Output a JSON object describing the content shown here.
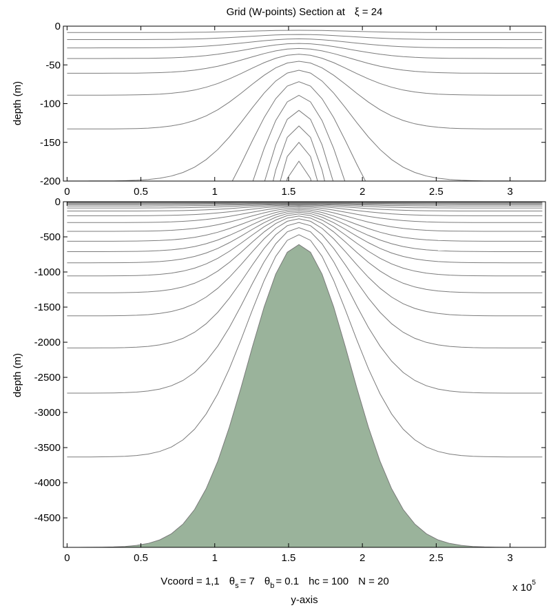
{
  "chart_data": [
    {
      "type": "line",
      "panel": "top",
      "title": "Grid (W-points) Section at",
      "title_symbol": "ξ = 24",
      "ylabel": "depth  (m)",
      "xlim": [
        -0.025,
        3.24
      ],
      "ylim": [
        -200,
        0
      ],
      "xticks": [
        "0",
        "0.5",
        "1",
        "1.5",
        "2",
        "2.5",
        "3"
      ],
      "yticks": [
        "0",
        "-50",
        "-100",
        "-150",
        "-200"
      ],
      "line_color": "#7a7a7a",
      "grid": false
    },
    {
      "type": "area",
      "panel": "bottom",
      "ylabel": "depth  (m)",
      "xlabel": "y-axis",
      "x_multiplier": "x 10",
      "x_multiplier_exp": "5",
      "xlim": [
        -0.025,
        3.24
      ],
      "ylim": [
        -4920,
        0
      ],
      "xticks": [
        "0",
        "0.5",
        "1",
        "1.5",
        "2",
        "2.5",
        "3"
      ],
      "yticks": [
        "0",
        "-500",
        "-1000",
        "-1500",
        "-2000",
        "-2500",
        "-3000",
        "-3500",
        "-4000",
        "-4500"
      ],
      "fill_color": "#9ab39b",
      "line_color": "#7a7a7a",
      "grid": false,
      "annotation": {
        "vcoord": "Vcoord = 1,1",
        "theta_s": {
          "sym": "θ",
          "sub": "s",
          "val": "= 7"
        },
        "theta_b": {
          "sym": "θ",
          "sub": "b",
          "val": "= 0.1"
        },
        "hc": "hc  = 100",
        "n": "N = 20"
      }
    }
  ],
  "grid_params": {
    "theta_s": 7,
    "theta_b": 0.1,
    "hc": 100,
    "N": 20
  },
  "bathymetry": {
    "x": [
      0,
      0.0785,
      0.157,
      0.2355,
      0.314,
      0.3925,
      0.471,
      0.5495,
      0.628,
      0.7065,
      0.785,
      0.8635,
      0.942,
      1.0205,
      1.099,
      1.1775,
      1.256,
      1.3345,
      1.413,
      1.4915,
      1.57,
      1.6485,
      1.727,
      1.8055,
      1.884,
      1.9625,
      2.041,
      2.1195,
      2.198,
      2.2765,
      2.355,
      2.4335,
      2.512,
      2.5905,
      2.669,
      2.7475,
      2.826,
      2.9045,
      2.983,
      3.0615,
      3.14,
      3.2185
    ],
    "h": [
      4920,
      4920,
      4919,
      4917,
      4914,
      4907,
      4892,
      4864,
      4813,
      4727,
      4589,
      4381,
      4086,
      3695,
      3209,
      2651,
      2062,
      1499,
      1031,
      719,
      610,
      719,
      1031,
      1499,
      2062,
      2651,
      3209,
      3695,
      4086,
      4381,
      4589,
      4727,
      4813,
      4864,
      4892,
      4907,
      4914,
      4917,
      4919,
      4920,
      4920,
      4920
    ]
  }
}
